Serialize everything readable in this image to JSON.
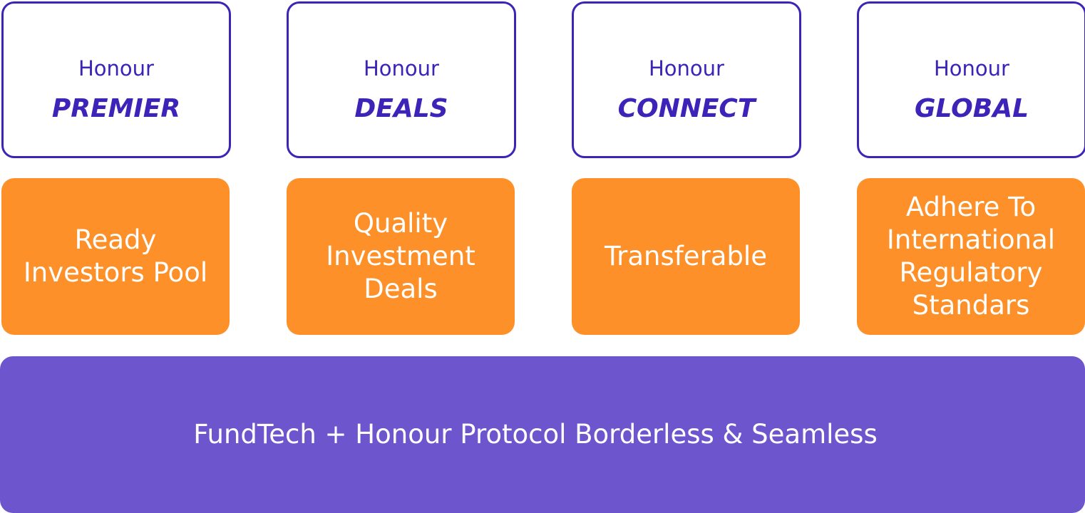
{
  "colors": {
    "brand_border": "#3d23b8",
    "brand_text": "#3d23b8",
    "feature_bg": "#fd9028",
    "feature_text": "#ffffff",
    "foundation_bg": "#6c55cd",
    "foundation_text": "#ffffff"
  },
  "products": [
    {
      "prefix": "Honour",
      "name": "PREMIER",
      "feature": "Ready Investors Pool"
    },
    {
      "prefix": "Honour",
      "name": "DEALS",
      "feature": "Quality Investment Deals"
    },
    {
      "prefix": "Honour",
      "name": "CONNECT",
      "feature": "Transferable"
    },
    {
      "prefix": "Honour",
      "name": "GLOBAL",
      "feature": "Adhere To International Regulatory Standars"
    }
  ],
  "foundation": {
    "label": "FundTech + Honour Protocol Borderless & Seamless"
  }
}
